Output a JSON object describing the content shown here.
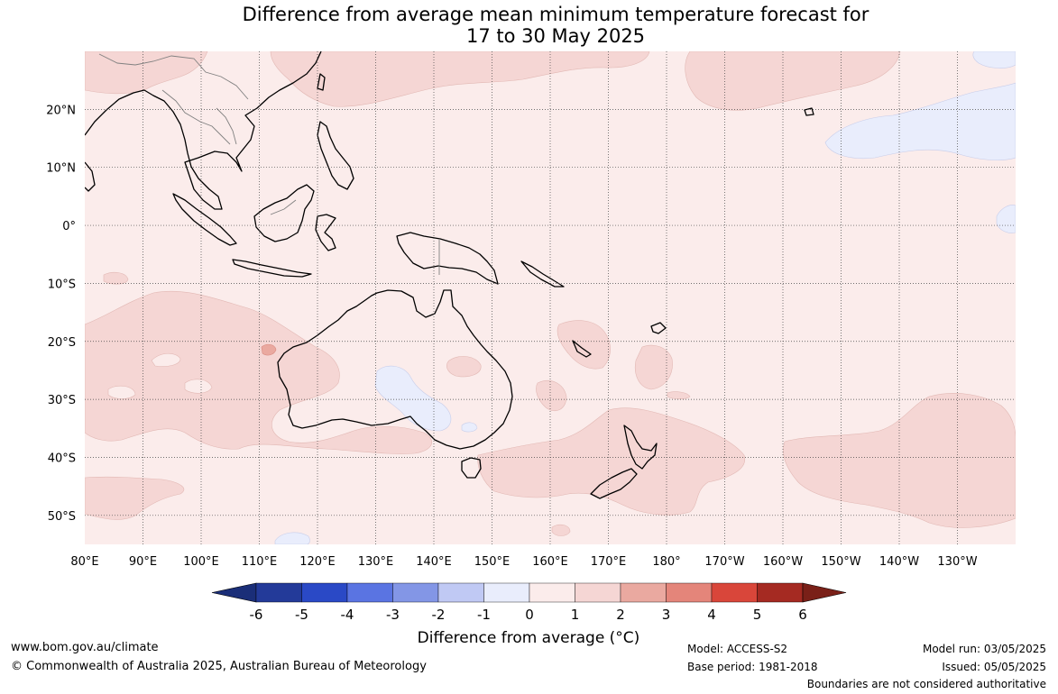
{
  "title": {
    "line1": "Difference from average mean minimum temperature forecast for",
    "line2": "17 to 30 May 2025"
  },
  "map": {
    "extent": {
      "lon_min": 80,
      "lon_max": 240,
      "lat_min": -55,
      "lat_max": 30
    },
    "lon_ticks": [
      {
        "value": 80,
        "label": "80°E"
      },
      {
        "value": 90,
        "label": "90°E"
      },
      {
        "value": 100,
        "label": "100°E"
      },
      {
        "value": 110,
        "label": "110°E"
      },
      {
        "value": 120,
        "label": "120°E"
      },
      {
        "value": 130,
        "label": "130°E"
      },
      {
        "value": 140,
        "label": "140°E"
      },
      {
        "value": 150,
        "label": "150°E"
      },
      {
        "value": 160,
        "label": "160°E"
      },
      {
        "value": 170,
        "label": "170°E"
      },
      {
        "value": 180,
        "label": "180°"
      },
      {
        "value": 190,
        "label": "170°W"
      },
      {
        "value": 200,
        "label": "160°W"
      },
      {
        "value": 210,
        "label": "150°W"
      },
      {
        "value": 220,
        "label": "140°W"
      },
      {
        "value": 230,
        "label": "130°W"
      }
    ],
    "lat_ticks": [
      {
        "value": 20,
        "label": "20°N"
      },
      {
        "value": 10,
        "label": "10°N"
      },
      {
        "value": 0,
        "label": "0°"
      },
      {
        "value": -10,
        "label": "10°S"
      },
      {
        "value": -20,
        "label": "20°S"
      },
      {
        "value": -30,
        "label": "30°S"
      },
      {
        "value": -40,
        "label": "40°S"
      },
      {
        "value": -50,
        "label": "50°S"
      }
    ],
    "grid": true,
    "background_class": "0 to 1",
    "colors": {
      "c0_1": "#fbeceb",
      "c1_2": "#f5d6d4",
      "c2_3": "#eaa9a0",
      "cm1_0": "#e9edfc"
    }
  },
  "colorbar": {
    "bounds": [
      -6,
      -5,
      -4,
      -3,
      -2,
      -1,
      0,
      1,
      2,
      3,
      4,
      5,
      6
    ],
    "tick_labels": [
      "-6",
      "-5",
      "-4",
      "-3",
      "-2",
      "-1",
      "0",
      "1",
      "2",
      "3",
      "4",
      "5",
      "6"
    ],
    "colors": [
      "#233a99",
      "#2a49c6",
      "#5a74e2",
      "#8396e6",
      "#c0c9f4",
      "#e9edfc",
      "#fbeceb",
      "#f5d6d4",
      "#eaa9a0",
      "#e4857a",
      "#d9463a",
      "#a52a22"
    ],
    "under_color": "#1a2e78",
    "over_color": "#7a2018",
    "label": "Difference from average (°C)"
  },
  "footer": {
    "website": "www.bom.gov.au/climate",
    "copyright": "© Commonwealth of Australia 2025, Australian Bureau of Meteorology",
    "model": "Model: ACCESS-S2",
    "base_period": "Base period: 1981-2018",
    "model_run": "Model run: 03/05/2025",
    "issued": "Issued: 05/05/2025",
    "disclaimer": "Boundaries are not considered authoritative"
  }
}
